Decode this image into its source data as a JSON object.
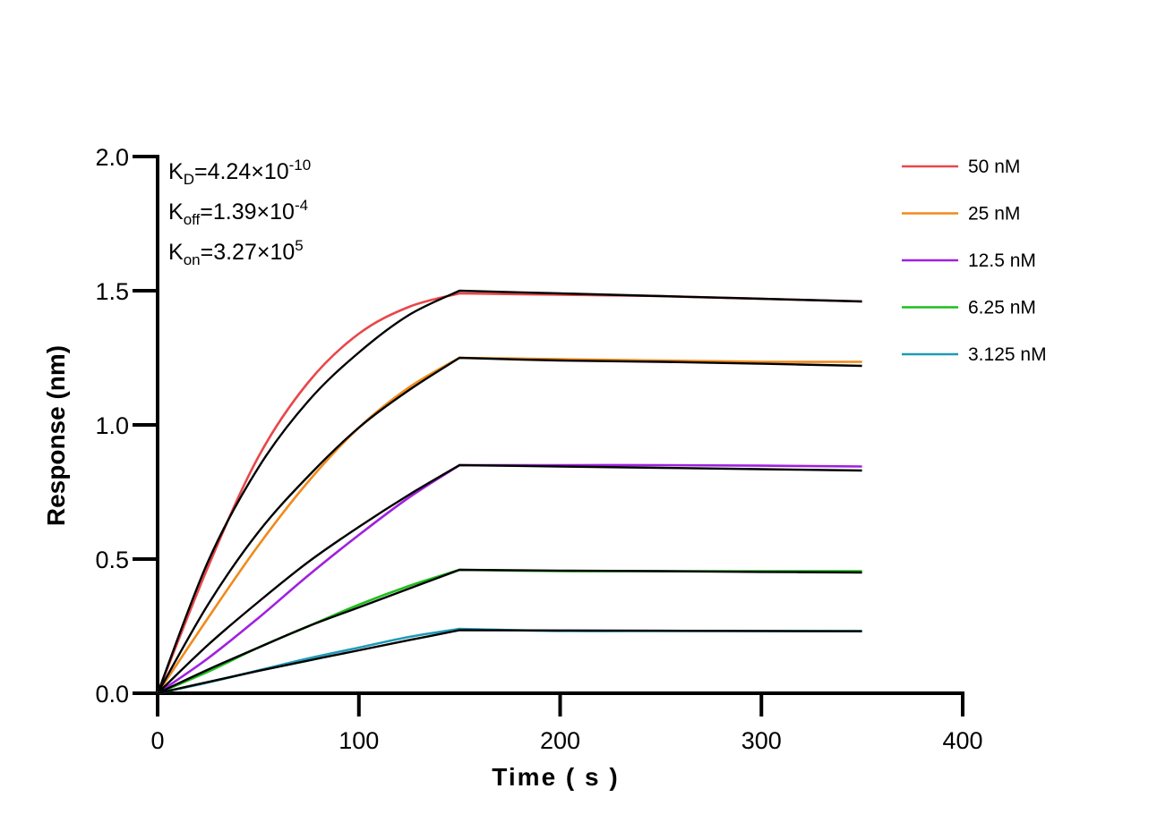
{
  "chart_data": {
    "type": "line",
    "title": "",
    "xlabel": "Time ( s )",
    "ylabel": "Response (nm)",
    "xlim": [
      0,
      400
    ],
    "ylim": [
      0,
      2.0
    ],
    "xticks": [
      "0",
      "100",
      "200",
      "300",
      "400"
    ],
    "yticks": [
      "0.0",
      "0.5",
      "1.0",
      "1.5",
      "2.0"
    ],
    "grid": false,
    "legend_position": "top-right",
    "x": [
      0,
      25,
      50,
      75,
      100,
      125,
      150,
      200,
      250,
      300,
      350
    ],
    "series": [
      {
        "name": "50 nM",
        "color": "#e8474a",
        "values": [
          0,
          0.47,
          0.88,
          1.16,
          1.34,
          1.44,
          1.49,
          1.485,
          1.48,
          1.47,
          1.46
        ],
        "fit": [
          0,
          0.49,
          0.84,
          1.09,
          1.27,
          1.41,
          1.5,
          1.49,
          1.48,
          1.47,
          1.46
        ]
      },
      {
        "name": "25 nM",
        "color": "#f08a1c",
        "values": [
          0,
          0.28,
          0.55,
          0.79,
          0.99,
          1.14,
          1.25,
          1.245,
          1.24,
          1.235,
          1.235
        ],
        "fit": [
          0,
          0.33,
          0.6,
          0.81,
          0.99,
          1.13,
          1.25,
          1.24,
          1.235,
          1.228,
          1.22
        ]
      },
      {
        "name": "12.5 nM",
        "color": "#a020e0",
        "values": [
          0,
          0.13,
          0.28,
          0.44,
          0.59,
          0.73,
          0.85,
          0.85,
          0.85,
          0.848,
          0.845
        ],
        "fit": [
          0,
          0.18,
          0.34,
          0.49,
          0.62,
          0.74,
          0.85,
          0.845,
          0.84,
          0.835,
          0.83
        ]
      },
      {
        "name": "6.25 nM",
        "color": "#1cbf1c",
        "values": [
          0,
          0.08,
          0.17,
          0.25,
          0.33,
          0.4,
          0.46,
          0.455,
          0.455,
          0.455,
          0.455
        ],
        "fit": [
          0,
          0.088,
          0.17,
          0.25,
          0.32,
          0.39,
          0.46,
          0.457,
          0.455,
          0.452,
          0.45
        ]
      },
      {
        "name": "3.125 nM",
        "color": "#1f9bb5",
        "values": [
          0,
          0.04,
          0.085,
          0.13,
          0.17,
          0.21,
          0.24,
          0.232,
          0.232,
          0.232,
          0.232
        ],
        "fit": [
          0,
          0.042,
          0.083,
          0.122,
          0.16,
          0.198,
          0.235,
          0.234,
          0.233,
          0.232,
          0.231
        ]
      }
    ],
    "fit_color": "#000000",
    "annotations": [
      {
        "sym": "K",
        "sub": "D",
        "val": "=4.24×10",
        "sup": "-10"
      },
      {
        "sym": "K",
        "sub": "off",
        "val": "=1.39×10",
        "sup": "-4"
      },
      {
        "sym": "K",
        "sub": "on",
        "val": "=3.27×10",
        "sup": "5"
      }
    ]
  }
}
